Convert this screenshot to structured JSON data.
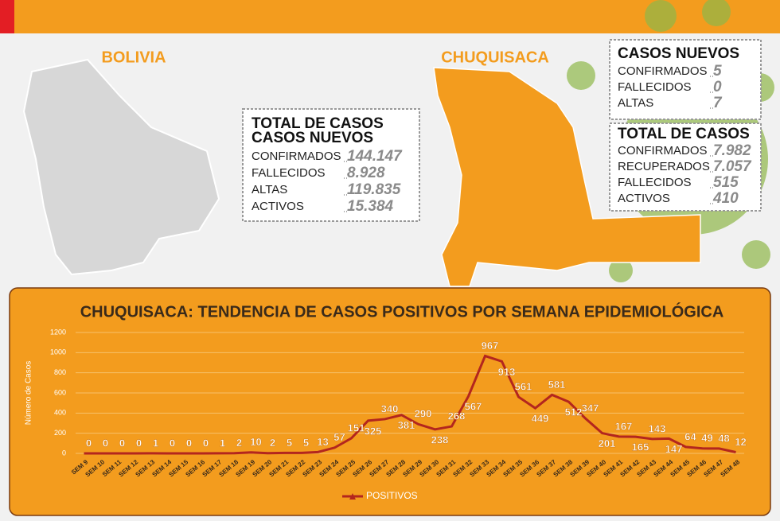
{
  "map_labels": {
    "country": "BOLIVIA",
    "department": "CHUQUISACA"
  },
  "bolivia_box": {
    "headings": [
      "TOTAL DE CASOS",
      "CASOS NUEVOS"
    ],
    "rows": [
      {
        "label": "CONFIRMADOS",
        "value": "144.147"
      },
      {
        "label": "FALLECIDOS",
        "value": "8.928"
      },
      {
        "label": "ALTAS",
        "value": "119.835"
      },
      {
        "label": "ACTIVOS",
        "value": "15.384"
      }
    ]
  },
  "chuquisaca_new_box": {
    "heading": "CASOS NUEVOS",
    "rows": [
      {
        "label": "CONFIRMADOS",
        "value": "5"
      },
      {
        "label": "FALLECIDOS",
        "value": "0"
      },
      {
        "label": "ALTAS",
        "value": "7"
      }
    ]
  },
  "chuquisaca_total_box": {
    "heading": "TOTAL DE CASOS",
    "rows": [
      {
        "label": "CONFIRMADOS",
        "value": "7.982"
      },
      {
        "label": "RECUPERADOS",
        "value": "7.057"
      },
      {
        "label": "FALLECIDOS",
        "value": "515"
      },
      {
        "label": "ACTIVOS",
        "value": "410"
      }
    ]
  },
  "chart_data": {
    "type": "line",
    "title": "CHUQUISACA:  TENDENCIA DE CASOS POSITIVOS POR SEMANA EPIDEMIOLÓGICA",
    "y_label": "Número de Casos",
    "categories": [
      "SEM 9",
      "SEM 10",
      "SEM 11",
      "SEM 12",
      "SEM 13",
      "SEM 14",
      "SEM 15",
      "SEM 16",
      "SEM 17",
      "SEM 18",
      "SEM 19",
      "SEM 20",
      "SEM 21",
      "SEM 22",
      "SEM 23",
      "SEM 24",
      "SEM 25",
      "SEM 26",
      "SEM 27",
      "SEM 28",
      "SEM 29",
      "SEM 30",
      "SEM 31",
      "SEM 32",
      "SEM 33",
      "SEM 34",
      "SEM 35",
      "SEM 36",
      "SEM 37",
      "SEM 38",
      "SEM 39",
      "SEM 40",
      "SEM 41",
      "SEM 42",
      "SEM 43",
      "SEM 44",
      "SEM 45",
      "SEM 46",
      "SEM 47",
      "SEM 48"
    ],
    "series": [
      {
        "name": "POSITIVOS",
        "color": "#b3261e",
        "values": [
          0,
          0,
          0,
          0,
          1,
          0,
          0,
          0,
          1,
          2,
          10,
          2,
          5,
          5,
          13,
          57,
          151,
          325,
          340,
          381,
          290,
          238,
          268,
          567,
          967,
          913,
          561,
          449,
          581,
          512,
          347,
          201,
          167,
          165,
          143,
          147,
          64,
          49,
          48,
          12
        ]
      }
    ],
    "ylim": [
      0,
      1200
    ],
    "yticks": [
      0,
      200,
      400,
      600,
      800,
      1000,
      1200
    ],
    "grid": true,
    "legend": "bottom"
  }
}
